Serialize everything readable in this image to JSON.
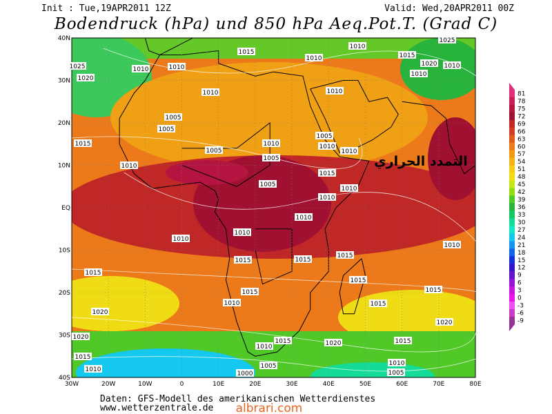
{
  "header": {
    "init": "Init : Tue,19APR2011 12Z",
    "valid": "Valid: Wed,20APR2011 00Z",
    "title": "Bodendruck (hPa) und 850 hPa Aeq.Pot.T. (Grad C)"
  },
  "axes": {
    "lon_ticks": [
      "30W",
      "20W",
      "10W",
      "0",
      "10E",
      "20E",
      "30E",
      "40E",
      "50E",
      "60E",
      "70E",
      "80E"
    ],
    "lat_ticks": [
      "40N",
      "30N",
      "20N",
      "10N",
      "EQ",
      "10S",
      "20S",
      "30S",
      "40S"
    ]
  },
  "isobar_labels": [
    "1015",
    "1010",
    "1010",
    "1015",
    "1025",
    "1020",
    "1010",
    "1010",
    "1010",
    "1010",
    "1010",
    "1010",
    "1005",
    "1005",
    "1010",
    "1005",
    "1010",
    "1010",
    "1005",
    "1005",
    "1010",
    "1015",
    "1005",
    "1010",
    "1010",
    "1010",
    "1010",
    "1010",
    "1010",
    "1015",
    "1015",
    "1015",
    "1015",
    "1015",
    "1015",
    "1010",
    "1015",
    "1015",
    "1020",
    "1020",
    "1020",
    "1015",
    "1010",
    "1020",
    "1015",
    "1015",
    "1010",
    "1005",
    "1010",
    "1000",
    "1005",
    "1025",
    "1020",
    "1015"
  ],
  "annotation": "التمدد الحراري",
  "colorbar": {
    "ticks": [
      81,
      78,
      75,
      72,
      69,
      66,
      63,
      60,
      57,
      54,
      51,
      48,
      45,
      42,
      39,
      36,
      33,
      30,
      27,
      24,
      21,
      18,
      15,
      12,
      9,
      6,
      3,
      0,
      -3,
      -6,
      -9
    ],
    "colors": [
      "#e0307a",
      "#c81e5a",
      "#b41440",
      "#a01030",
      "#c02828",
      "#d03c28",
      "#e05a1e",
      "#ec7a1a",
      "#f09a14",
      "#f5b414",
      "#f7cc14",
      "#f0dc14",
      "#c8e614",
      "#96dc14",
      "#50c828",
      "#28b43c",
      "#14c864",
      "#14dc96",
      "#14e6c8",
      "#14c8f0",
      "#1496f0",
      "#1464e6",
      "#1432dc",
      "#3214c8",
      "#6414c8",
      "#9614d2",
      "#c814dc",
      "#e614e6",
      "#f050f0",
      "#c83cc8",
      "#963296"
    ]
  },
  "footer": {
    "source": "Daten: GFS-Modell des amerikanischen Wetterdienstes",
    "url": "www.wetterzentrale.de",
    "watermark": "albrari.com"
  }
}
